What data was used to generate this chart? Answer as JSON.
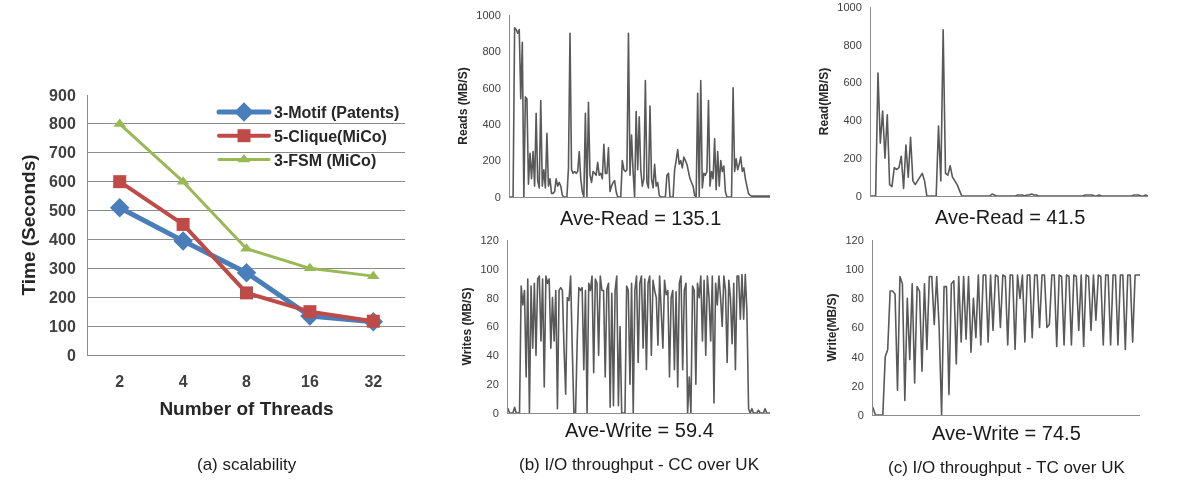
{
  "chart_data": [
    {
      "type": "line",
      "xlabel": "Number of Threads",
      "ylabel": "Time (Seconds)",
      "categories": [
        "2",
        "4",
        "8",
        "16",
        "32"
      ],
      "series": [
        {
          "name": "3-Motif (Patents)",
          "color": "#4a7ebb",
          "marker": "diamond",
          "values": [
            510,
            395,
            285,
            135,
            115
          ]
        },
        {
          "name": "5-Clique(MiCo)",
          "color": "#be4b48",
          "marker": "square",
          "values": [
            600,
            452,
            215,
            150,
            117
          ]
        },
        {
          "name": "3-FSM (MiCo)",
          "color": "#98b954",
          "marker": "triangle",
          "values": [
            800,
            600,
            368,
            300,
            273
          ]
        }
      ],
      "ylim": [
        0,
        900
      ],
      "yticks": [
        0,
        100,
        200,
        300,
        400,
        500,
        600,
        700,
        800,
        900
      ],
      "grid": "y",
      "legend": "top right",
      "annotations": [
        "(a) scalability"
      ]
    },
    {
      "type": "line",
      "ylabel": "Reads (MB/S)",
      "tick_labels": "y",
      "ylim": [
        0,
        1000
      ],
      "yticks": [
        0,
        200,
        400,
        600,
        800,
        1000
      ],
      "grid": false,
      "categories": [
        null,
        null,
        null,
        null,
        null,
        null,
        null,
        null,
        null,
        null,
        null,
        null,
        null,
        null,
        null,
        null,
        null,
        null,
        null,
        null,
        null,
        null,
        null,
        null,
        null,
        null,
        null,
        null,
        null,
        null,
        null,
        null,
        null,
        null,
        null,
        null,
        null,
        null,
        null,
        null,
        null,
        null,
        null,
        null,
        null,
        null,
        null,
        null,
        null,
        null,
        null,
        null,
        null,
        null,
        null,
        null,
        null,
        null,
        null,
        null,
        null,
        null,
        null,
        null,
        null,
        null,
        null,
        null,
        null,
        null,
        null,
        null,
        null,
        null,
        null,
        null,
        null,
        null,
        null,
        null,
        null,
        null,
        null,
        null,
        null,
        null,
        null,
        null,
        null,
        null,
        null,
        null,
        null,
        null,
        null,
        null,
        null,
        null,
        null,
        null,
        null,
        null,
        null,
        null,
        null,
        null,
        null,
        null,
        null,
        null,
        null,
        null,
        null,
        null,
        null,
        null,
        null,
        null,
        null,
        null,
        null,
        null,
        null,
        null,
        null,
        null,
        null,
        null,
        null,
        null,
        null,
        null,
        null,
        null,
        null,
        null,
        null,
        null,
        null,
        null,
        null,
        null,
        null,
        null,
        null,
        null,
        null,
        null,
        null,
        null,
        null,
        null,
        null,
        null,
        null,
        null,
        null,
        null,
        null,
        null,
        null,
        null,
        null,
        null,
        null,
        null,
        null,
        null,
        null,
        null
      ],
      "series": [
        {
          "color": "#595959",
          "values": [
            0,
            0,
            0,
            930,
            920,
            900,
            920,
            540,
            850,
            0,
            550,
            540,
            70,
            240,
            100,
            250,
            60,
            460,
            90,
            50,
            530,
            60,
            150,
            50,
            350,
            60,
            100,
            20,
            20,
            30,
            100,
            60,
            80,
            60,
            10,
            0,
            0,
            0,
            160,
            900,
            150,
            130,
            140,
            130,
            140,
            250,
            100,
            30,
            0,
            460,
            0,
            520,
            120,
            80,
            140,
            130,
            120,
            190,
            120,
            130,
            100,
            290,
            130,
            130,
            270,
            30,
            60,
            80,
            90,
            30,
            0,
            0,
            0,
            200,
            150,
            140,
            150,
            900,
            120,
            340,
            140,
            0,
            470,
            150,
            440,
            150,
            60,
            100,
            640,
            80,
            50,
            500,
            100,
            50,
            180,
            60,
            80,
            10,
            0,
            0,
            0,
            0,
            120,
            130,
            0,
            0,
            0,
            150,
            200,
            260,
            180,
            200,
            160,
            220,
            200,
            180,
            140,
            100,
            80,
            60,
            10,
            0,
            570,
            0,
            640,
            50,
            130,
            120,
            140,
            530,
            60,
            140,
            100,
            320,
            40,
            250,
            60,
            200,
            140,
            170,
            30,
            0,
            0,
            0,
            0,
            600,
            140,
            210,
            150,
            180,
            220,
            140,
            160,
            100,
            60,
            20,
            10,
            5,
            5,
            5,
            5,
            5,
            5,
            5,
            5,
            5,
            5,
            5,
            5,
            5
          ]
        }
      ],
      "annotations": [
        "Ave-Read = 135.1"
      ]
    },
    {
      "type": "line",
      "ylabel": "Writes (MB/S)",
      "tick_labels": "y",
      "ylim": [
        0,
        120
      ],
      "yticks": [
        0,
        20,
        40,
        60,
        80,
        100,
        120
      ],
      "grid": false,
      "categories": [
        null,
        null,
        null,
        null,
        null,
        null,
        null,
        null,
        null,
        null,
        null,
        null,
        null,
        null,
        null,
        null,
        null,
        null,
        null,
        null,
        null,
        null,
        null,
        null,
        null,
        null,
        null,
        null,
        null,
        null,
        null,
        null,
        null,
        null,
        null,
        null,
        null,
        null,
        null,
        null,
        null,
        null,
        null,
        null,
        null,
        null,
        null,
        null,
        null,
        null,
        null,
        null,
        null,
        null,
        null,
        null,
        null,
        null,
        null,
        null,
        null,
        null,
        null,
        null,
        null,
        null,
        null,
        null,
        null,
        null,
        null,
        null,
        null,
        null,
        null,
        null,
        null,
        null,
        null,
        null,
        null,
        null,
        null,
        null,
        null,
        null,
        null,
        null,
        null,
        null,
        null,
        null,
        null,
        null,
        null,
        null,
        null,
        null,
        null,
        null,
        null,
        null,
        null,
        null,
        null,
        null,
        null,
        null,
        null,
        null,
        null,
        null,
        null,
        null,
        null,
        null,
        null,
        null,
        null,
        null,
        null,
        null,
        null,
        null,
        null,
        null,
        null,
        null,
        null,
        null,
        null,
        null,
        null,
        null,
        null,
        null,
        null,
        null,
        null,
        null,
        null,
        null,
        null,
        null,
        null,
        null,
        null,
        null,
        null,
        null,
        null,
        null,
        null,
        null,
        null,
        null,
        null,
        null,
        null,
        null
      ],
      "series": [
        {
          "color": "#595959",
          "values": [
            3,
            0,
            0,
            0,
            4,
            0,
            0,
            0,
            88,
            75,
            85,
            25,
            93,
            0,
            88,
            45,
            90,
            40,
            93,
            95,
            50,
            93,
            18,
            95,
            90,
            93,
            45,
            80,
            50,
            85,
            3,
            85,
            87,
            85,
            45,
            13,
            80,
            78,
            95,
            45,
            0,
            0,
            50,
            87,
            85,
            87,
            30,
            85,
            0,
            90,
            85,
            95,
            28,
            93,
            90,
            40,
            95,
            85,
            85,
            25,
            86,
            90,
            4,
            83,
            5,
            85,
            95,
            5,
            60,
            0,
            0,
            0,
            88,
            85,
            20,
            90,
            0,
            85,
            95,
            35,
            90,
            95,
            45,
            93,
            30,
            90,
            95,
            40,
            92,
            85,
            80,
            47,
            95,
            70,
            45,
            92,
            82,
            85,
            25,
            80,
            85,
            30,
            84,
            18,
            90,
            95,
            30,
            85,
            90,
            0,
            25,
            0,
            88,
            85,
            20,
            90,
            80,
            95,
            50,
            92,
            40,
            95,
            80,
            50,
            95,
            7,
            90,
            75,
            95,
            80,
            60,
            95,
            85,
            35,
            92,
            80,
            48,
            90,
            30,
            95,
            95,
            65,
            96,
            65,
            96,
            70,
            3,
            0,
            3,
            0,
            0,
            0,
            2,
            0,
            0,
            0,
            3,
            0,
            0,
            0
          ]
        }
      ],
      "annotations": [
        "Ave-Write = 59.4",
        "(b) I/O throughput - CC over UK"
      ]
    },
    {
      "type": "line",
      "ylabel": "Read(MB/S)",
      "tick_labels": "y",
      "ylim": [
        0,
        1000
      ],
      "yticks": [
        0,
        200,
        400,
        600,
        800,
        1000
      ],
      "grid": false,
      "categories": [
        null,
        null,
        null,
        null,
        null,
        null,
        null,
        null,
        null,
        null,
        null,
        null,
        null,
        null,
        null,
        null,
        null,
        null,
        null,
        null,
        null,
        null,
        null,
        null,
        null,
        null,
        null,
        null,
        null,
        null,
        null,
        null,
        null,
        null,
        null,
        null,
        null,
        null,
        null,
        null,
        null,
        null,
        null,
        null,
        null,
        null,
        null,
        null,
        null,
        null,
        null,
        null,
        null,
        null,
        null,
        null,
        null,
        null,
        null,
        null,
        null,
        null,
        null,
        null,
        null,
        null,
        null,
        null,
        null,
        null,
        null,
        null,
        null,
        null,
        null,
        null,
        null,
        null,
        null,
        null,
        null,
        null,
        null,
        null,
        null,
        null,
        null,
        null,
        null,
        null,
        null,
        null,
        null,
        null,
        null,
        null,
        null,
        null,
        null,
        null,
        null,
        null,
        null,
        null,
        null,
        null,
        null,
        null,
        null,
        null,
        null,
        null,
        null,
        null,
        null,
        null,
        null,
        null,
        null,
        null
      ],
      "series": [
        {
          "color": "#595959",
          "values": [
            0,
            0,
            0,
            650,
            280,
            450,
            200,
            430,
            60,
            50,
            150,
            140,
            150,
            210,
            40,
            270,
            100,
            310,
            80,
            60,
            80,
            100,
            120,
            80,
            0,
            0,
            0,
            0,
            0,
            370,
            80,
            880,
            120,
            110,
            160,
            100,
            80,
            60,
            30,
            0,
            0,
            0,
            0,
            0,
            0,
            0,
            0,
            0,
            0,
            0,
            0,
            0,
            10,
            5,
            0,
            0,
            0,
            0,
            0,
            0,
            0,
            0,
            0,
            5,
            5,
            5,
            0,
            5,
            5,
            10,
            5,
            5,
            0,
            0,
            0,
            0,
            0,
            0,
            0,
            0,
            0,
            0,
            0,
            0,
            0,
            0,
            0,
            0,
            0,
            0,
            0,
            0,
            5,
            5,
            5,
            5,
            0,
            0,
            5,
            0,
            0,
            0,
            0,
            0,
            0,
            0,
            0,
            0,
            0,
            0,
            0,
            0,
            0,
            5,
            5,
            5,
            0,
            0,
            5,
            0
          ]
        }
      ],
      "annotations": [
        "Ave-Read = 41.5"
      ]
    },
    {
      "type": "line",
      "ylabel": "Write(MB/S)",
      "tick_labels": "y",
      "ylim": [
        0,
        120
      ],
      "yticks": [
        0,
        20,
        40,
        60,
        80,
        100,
        120
      ],
      "grid": false,
      "categories": [
        null,
        null,
        null,
        null,
        null,
        null,
        null,
        null,
        null,
        null,
        null,
        null,
        null,
        null,
        null,
        null,
        null,
        null,
        null,
        null,
        null,
        null,
        null,
        null,
        null,
        null,
        null,
        null,
        null,
        null,
        null,
        null,
        null,
        null,
        null,
        null,
        null,
        null,
        null,
        null,
        null,
        null,
        null,
        null,
        null,
        null,
        null,
        null,
        null,
        null,
        null,
        null,
        null,
        null,
        null,
        null,
        null,
        null,
        null,
        null,
        null,
        null,
        null,
        null,
        null,
        null,
        null,
        null,
        null,
        null,
        null,
        null,
        null,
        null,
        null,
        null,
        null,
        null,
        null,
        null,
        null,
        null,
        null,
        null,
        null,
        null,
        null,
        null,
        null,
        null,
        null,
        null,
        null,
        null,
        null,
        null,
        null,
        null,
        null,
        null,
        null,
        null,
        null,
        null,
        null,
        null,
        null,
        null,
        null,
        null
      ],
      "series": [
        {
          "color": "#595959",
          "values": [
            5,
            0,
            0,
            0,
            0,
            40,
            45,
            85,
            85,
            83,
            17,
            95,
            90,
            10,
            80,
            38,
            90,
            22,
            88,
            85,
            30,
            90,
            45,
            95,
            95,
            62,
            95,
            60,
            0,
            88,
            88,
            14,
            90,
            92,
            35,
            95,
            50,
            95,
            52,
            95,
            43,
            80,
            53,
            96,
            48,
            96,
            96,
            50,
            96,
            58,
            96,
            95,
            60,
            96,
            95,
            48,
            96,
            96,
            45,
            96,
            80,
            96,
            50,
            96,
            96,
            53,
            96,
            96,
            60,
            96,
            96,
            60,
            62,
            96,
            96,
            47,
            96,
            95,
            48,
            96,
            95,
            48,
            96,
            95,
            58,
            96,
            47,
            96,
            95,
            58,
            96,
            65,
            96,
            95,
            48,
            96,
            96,
            48,
            96,
            96,
            48,
            96,
            96,
            45,
            96,
            96,
            50,
            96,
            96,
            96
          ]
        }
      ],
      "annotations": [
        "Ave-Write = 74.5",
        "(c) I/O throughput - TC over UK"
      ]
    }
  ]
}
